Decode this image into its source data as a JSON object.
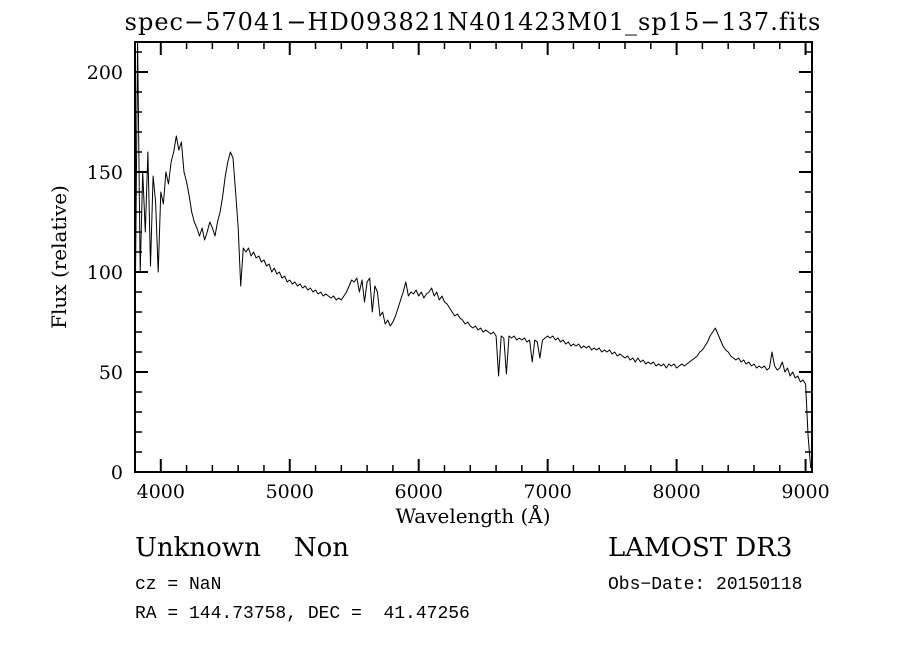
{
  "annotations": {
    "class_label": "Unknown    Non",
    "survey": "LAMOST DR3",
    "cz": "cz = NaN",
    "obs_date": "Obs−Date: 20150118",
    "radec": "RA = 144.73758, DEC =  41.47256"
  },
  "colors": {
    "line": "#000000",
    "frame": "#000000",
    "background": "#ffffff"
  },
  "chart_data": {
    "type": "line",
    "title": "spec−57041−HD093821N401423M01_sp15−137.fits",
    "xlabel": "Wavelength (Å)",
    "ylabel": "Flux (relative)",
    "xlim": [
      3800,
      9050
    ],
    "ylim": [
      0,
      215
    ],
    "x_ticks": [
      4000,
      5000,
      6000,
      7000,
      8000,
      9000
    ],
    "y_ticks": [
      0,
      50,
      100,
      150,
      200
    ],
    "x_minor_step": 200,
    "y_minor_step": 10,
    "grid": false,
    "legend": "none",
    "x_start": 3800,
    "x_step": 20,
    "flux": [
      70,
      215,
      100,
      150,
      120,
      160,
      103,
      148,
      135,
      100,
      140,
      134,
      150,
      144,
      155,
      160,
      168,
      161,
      165,
      150,
      145,
      138,
      130,
      125,
      122,
      118,
      122,
      116,
      120,
      125,
      122,
      118,
      125,
      130,
      138,
      148,
      155,
      160,
      157,
      140,
      122,
      93,
      112,
      110,
      112,
      108,
      110,
      107,
      108,
      105,
      106,
      103,
      104,
      100,
      102,
      99,
      100,
      97,
      98,
      95,
      96,
      94,
      95,
      93,
      94,
      92,
      93,
      91,
      92,
      90,
      91,
      89,
      90,
      88,
      89,
      88,
      87,
      88,
      86,
      87,
      86,
      88,
      90,
      93,
      96,
      95,
      97,
      90,
      96,
      85,
      95,
      97,
      80,
      93,
      90,
      78,
      80,
      74,
      76,
      73,
      75,
      78,
      82,
      86,
      90,
      95,
      88,
      90,
      89,
      91,
      88,
      90,
      87,
      89,
      90,
      92,
      88,
      90,
      86,
      88,
      85,
      84,
      82,
      80,
      78,
      79,
      77,
      76,
      74,
      75,
      73,
      72,
      73,
      71,
      72,
      70,
      71,
      70,
      69,
      70,
      68,
      48,
      68,
      67,
      49,
      68,
      67,
      68,
      66,
      67,
      66,
      67,
      65,
      66,
      55,
      66,
      65,
      57,
      66,
      67,
      68,
      67,
      68,
      66,
      67,
      65,
      66,
      64,
      65,
      63,
      64,
      63,
      64,
      62,
      63,
      62,
      63,
      61,
      62,
      61,
      62,
      60,
      61,
      60,
      61,
      59,
      60,
      58,
      59,
      58,
      57,
      58,
      56,
      57,
      55,
      57,
      55,
      56,
      54,
      55,
      54,
      55,
      53,
      54,
      53,
      54,
      52,
      54,
      53,
      54,
      52,
      53,
      54,
      53,
      54,
      55,
      56,
      57,
      58,
      60,
      61,
      63,
      65,
      68,
      70,
      72,
      69,
      66,
      63,
      61,
      60,
      58,
      57,
      56,
      57,
      55,
      56,
      54,
      55,
      53,
      54,
      52,
      53,
      52,
      53,
      51,
      52,
      60,
      53,
      51,
      52,
      55,
      50,
      52,
      48,
      50,
      47,
      48,
      45,
      46,
      44,
      18,
      2
    ]
  }
}
